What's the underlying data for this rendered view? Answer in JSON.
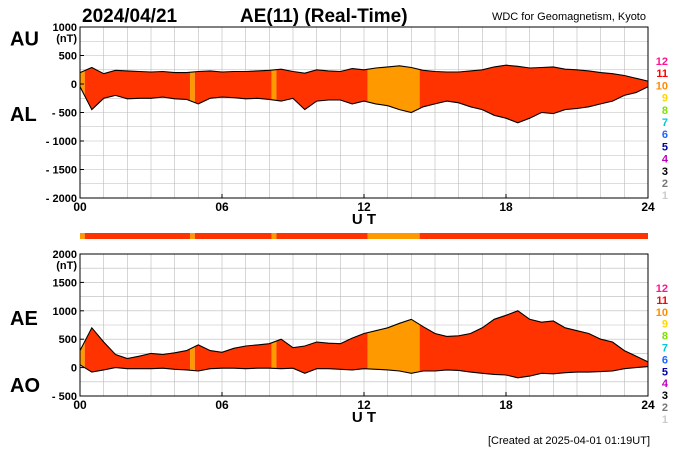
{
  "header": {
    "date": "2024/04/21",
    "title": "AE(11) (Real-Time)",
    "source": "WDC for Geomagnetism, Kyoto"
  },
  "footer": {
    "created": "[Created at 2025-04-01 01:19UT]"
  },
  "colors": {
    "fill_red": "#ff3300",
    "fill_orange": "#ff9900",
    "grid": "#bbbbbb",
    "axis": "#000000"
  },
  "station_count_legend": [
    {
      "label": "12",
      "color": "#ff1493"
    },
    {
      "label": "11",
      "color": "#ff0000"
    },
    {
      "label": "10",
      "color": "#ff8c00"
    },
    {
      "label": "9",
      "color": "#ffd700"
    },
    {
      "label": "8",
      "color": "#7fe000"
    },
    {
      "label": "7",
      "color": "#00c8d8"
    },
    {
      "label": "6",
      "color": "#1e64ff"
    },
    {
      "label": "5",
      "color": "#0000aa"
    },
    {
      "label": "4",
      "color": "#c000c0"
    },
    {
      "label": "3",
      "color": "#000000"
    },
    {
      "label": "2",
      "color": "#777777"
    },
    {
      "label": "1",
      "color": "#cccccc"
    }
  ],
  "station_count_bar": [
    {
      "from": 0,
      "to": 0.2,
      "count": 10
    },
    {
      "from": 0.2,
      "to": 4.65,
      "count": 11
    },
    {
      "from": 4.65,
      "to": 4.85,
      "count": 10
    },
    {
      "from": 4.85,
      "to": 8.1,
      "count": 11
    },
    {
      "from": 8.1,
      "to": 8.3,
      "count": 10
    },
    {
      "from": 8.3,
      "to": 12.15,
      "count": 11
    },
    {
      "from": 12.15,
      "to": 14.35,
      "count": 10
    },
    {
      "from": 14.35,
      "to": 24,
      "count": 11
    }
  ],
  "chart_data": [
    {
      "type": "area",
      "name": "AU/AL",
      "upper_label": "AU",
      "lower_label": "AL",
      "units": "(nT)",
      "xlabel": "U T",
      "xlim": [
        0,
        24
      ],
      "ylim": [
        -2000,
        1000
      ],
      "xticks": [
        "00",
        "06",
        "12",
        "18",
        "24"
      ],
      "yticks": [
        "1000",
        "500",
        "0",
        "- 500",
        "- 1000",
        "- 1500",
        "- 2000"
      ],
      "grid": true,
      "x": [
        0,
        0.5,
        1,
        1.5,
        2,
        2.5,
        3,
        3.5,
        4,
        4.5,
        5,
        5.5,
        6,
        6.5,
        7,
        7.5,
        8,
        8.5,
        9,
        9.5,
        10,
        10.5,
        11,
        11.5,
        12,
        12.5,
        13,
        13.5,
        14,
        14.5,
        15,
        15.5,
        16,
        16.5,
        17,
        17.5,
        18,
        18.5,
        19,
        19.5,
        20,
        20.5,
        21,
        21.5,
        22,
        22.5,
        23,
        23.5,
        24
      ],
      "series": [
        {
          "name": "AU",
          "values": [
            200,
            290,
            180,
            240,
            230,
            220,
            210,
            220,
            200,
            200,
            220,
            230,
            210,
            220,
            220,
            230,
            240,
            260,
            220,
            190,
            250,
            230,
            220,
            270,
            250,
            280,
            300,
            320,
            290,
            240,
            220,
            210,
            210,
            230,
            250,
            300,
            330,
            310,
            280,
            290,
            300,
            260,
            250,
            230,
            200,
            180,
            150,
            100,
            50
          ]
        },
        {
          "name": "AL",
          "values": [
            -50,
            -450,
            -250,
            -200,
            -260,
            -250,
            -250,
            -230,
            -260,
            -270,
            -350,
            -250,
            -230,
            -240,
            -260,
            -250,
            -270,
            -300,
            -250,
            -450,
            -300,
            -280,
            -280,
            -350,
            -300,
            -350,
            -380,
            -450,
            -500,
            -400,
            -350,
            -300,
            -330,
            -400,
            -450,
            -550,
            -600,
            -680,
            -600,
            -500,
            -520,
            -450,
            -430,
            -400,
            -350,
            -300,
            -200,
            -150,
            -50
          ]
        }
      ],
      "station_colored_fill": true
    },
    {
      "type": "area",
      "name": "AE/AO",
      "upper_label": "AE",
      "lower_label": "AO",
      "units": "(nT)",
      "xlabel": "U T",
      "xlim": [
        0,
        24
      ],
      "ylim": [
        -500,
        2000
      ],
      "xticks": [
        "00",
        "06",
        "12",
        "18",
        "24"
      ],
      "yticks": [
        "2000",
        "1500",
        "1000",
        "500",
        "0",
        "- 500"
      ],
      "grid": true,
      "x": [
        0,
        0.5,
        1,
        1.5,
        2,
        2.5,
        3,
        3.5,
        4,
        4.5,
        5,
        5.5,
        6,
        6.5,
        7,
        7.5,
        8,
        8.5,
        9,
        9.5,
        10,
        10.5,
        11,
        11.5,
        12,
        12.5,
        13,
        13.5,
        14,
        14.5,
        15,
        15.5,
        16,
        16.5,
        17,
        17.5,
        18,
        18.5,
        19,
        19.5,
        20,
        20.5,
        21,
        21.5,
        22,
        22.5,
        23,
        23.5,
        24
      ],
      "series": [
        {
          "name": "AE",
          "values": [
            300,
            700,
            450,
            230,
            160,
            200,
            250,
            230,
            260,
            300,
            400,
            300,
            270,
            340,
            380,
            400,
            420,
            500,
            350,
            380,
            450,
            430,
            420,
            520,
            600,
            650,
            700,
            780,
            850,
            720,
            600,
            550,
            560,
            600,
            700,
            850,
            920,
            1000,
            850,
            800,
            820,
            700,
            650,
            600,
            500,
            450,
            300,
            200,
            100
          ]
        },
        {
          "name": "AO",
          "values": [
            50,
            -80,
            -40,
            0,
            -20,
            -20,
            -20,
            -10,
            -30,
            -40,
            -60,
            -20,
            -10,
            -10,
            -20,
            -10,
            -10,
            -20,
            -10,
            -100,
            -20,
            -20,
            -30,
            -40,
            -20,
            -30,
            -40,
            -60,
            -100,
            -60,
            -60,
            -40,
            -50,
            -80,
            -100,
            -120,
            -130,
            -180,
            -150,
            -100,
            -110,
            -90,
            -80,
            -80,
            -70,
            -60,
            -20,
            0,
            20
          ]
        }
      ],
      "station_colored_fill": true
    }
  ]
}
